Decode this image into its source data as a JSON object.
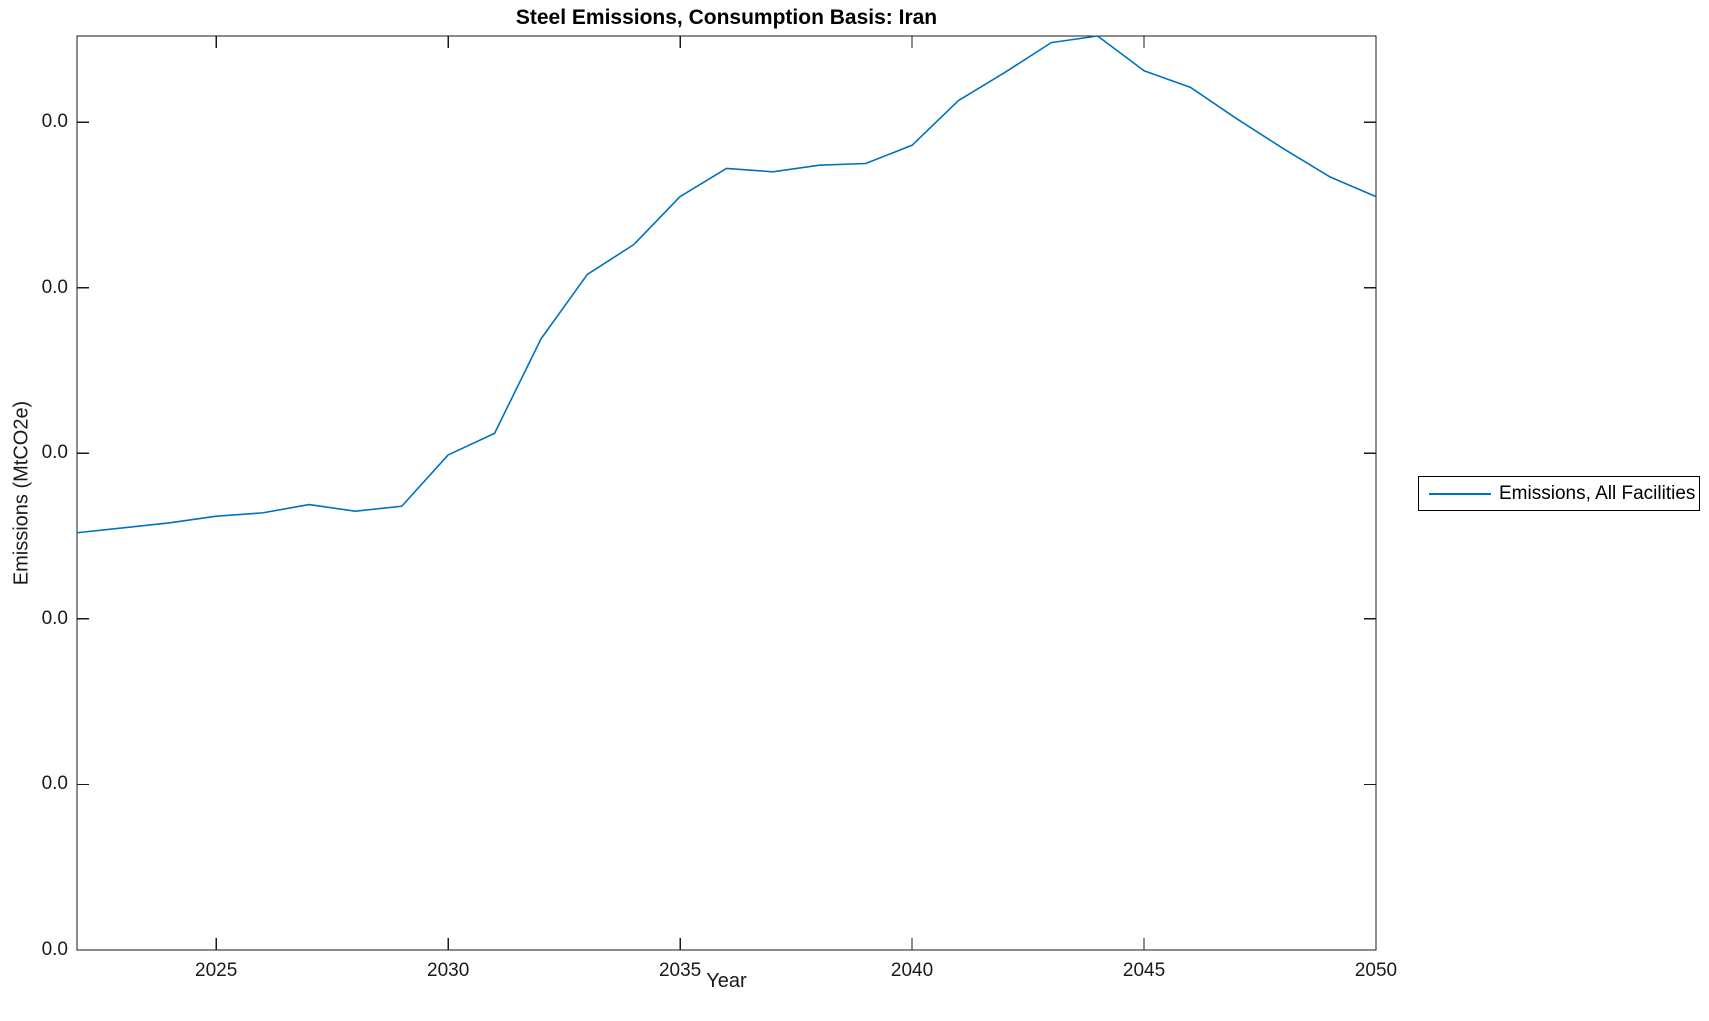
{
  "title": "Steel Emissions, Consumption Basis: Iran",
  "axes": {
    "xlabel": "Year",
    "ylabel": "Emissions (MtCO2e)"
  },
  "legend": {
    "label": "Emissions, All Facilities"
  },
  "chart_data": {
    "type": "line",
    "title": "Steel Emissions, Consumption Basis: Iran",
    "xlabel": "Year",
    "ylabel": "Emissions (MtCO2e)",
    "xlim": [
      2022,
      2050
    ],
    "ylim": [
      0,
      5.52
    ],
    "x_ticks": [
      2025,
      2030,
      2035,
      2040,
      2045,
      2050
    ],
    "y_ticks": [
      0,
      1,
      2,
      3,
      4,
      5
    ],
    "y_tick_labels": [
      "0.0",
      "0.0",
      "0.0",
      "0.0",
      "0.0",
      "0.0"
    ],
    "y_units": "axis tick units (1.0 = one tick interval; all tick labels render as 0.0)",
    "grid": false,
    "line_color": "#0072BD",
    "axis_color": "#1a1a1a",
    "legend": {
      "position": "right-outside",
      "entries": [
        "Emissions, All Facilities"
      ]
    },
    "series": [
      {
        "name": "Emissions, All Facilities",
        "x": [
          2022,
          2023,
          2024,
          2025,
          2026,
          2027,
          2028,
          2029,
          2030,
          2031,
          2032,
          2033,
          2034,
          2035,
          2036,
          2037,
          2038,
          2039,
          2040,
          2041,
          2042,
          2043,
          2044,
          2045,
          2046,
          2047,
          2048,
          2049,
          2050
        ],
        "y": [
          2.52,
          2.55,
          2.58,
          2.62,
          2.64,
          2.69,
          2.65,
          2.68,
          2.99,
          3.12,
          3.69,
          4.08,
          4.26,
          4.55,
          4.72,
          4.7,
          4.74,
          4.75,
          4.86,
          5.13,
          5.3,
          5.48,
          5.52,
          5.31,
          5.21,
          5.02,
          4.84,
          4.67,
          4.55
        ]
      }
    ]
  }
}
